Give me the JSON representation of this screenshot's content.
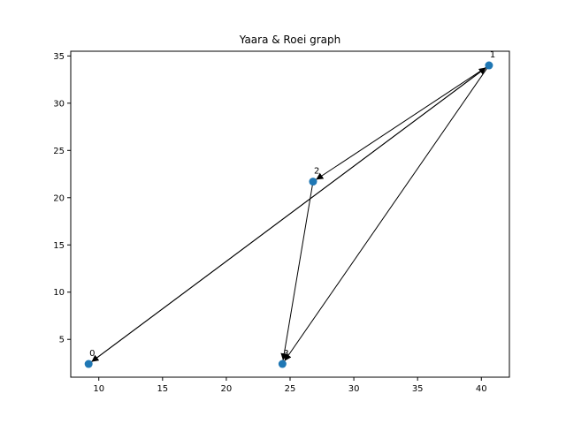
{
  "chart_data": {
    "type": "scatter",
    "title": "Yaara & Roei graph",
    "xlabel": "",
    "ylabel": "",
    "xlim": [
      7.8,
      42.2
    ],
    "ylim": [
      1.0,
      35.5
    ],
    "xticks": [
      10,
      15,
      20,
      25,
      30,
      35,
      40
    ],
    "yticks": [
      5,
      10,
      15,
      20,
      25,
      30,
      35
    ],
    "grid": false,
    "point_color": "#1f77b4",
    "edge_color": "#000000",
    "nodes": [
      {
        "label": "0",
        "x": 9.2,
        "y": 2.4
      },
      {
        "label": "1",
        "x": 40.6,
        "y": 34.0
      },
      {
        "label": "2",
        "x": 26.8,
        "y": 21.7
      },
      {
        "label": "3",
        "x": 24.4,
        "y": 2.4
      }
    ],
    "edges": [
      {
        "from": "1",
        "to": "0"
      },
      {
        "from": "0",
        "to": "1"
      },
      {
        "from": "1",
        "to": "2"
      },
      {
        "from": "2",
        "to": "3"
      },
      {
        "from": "1",
        "to": "3"
      }
    ]
  }
}
